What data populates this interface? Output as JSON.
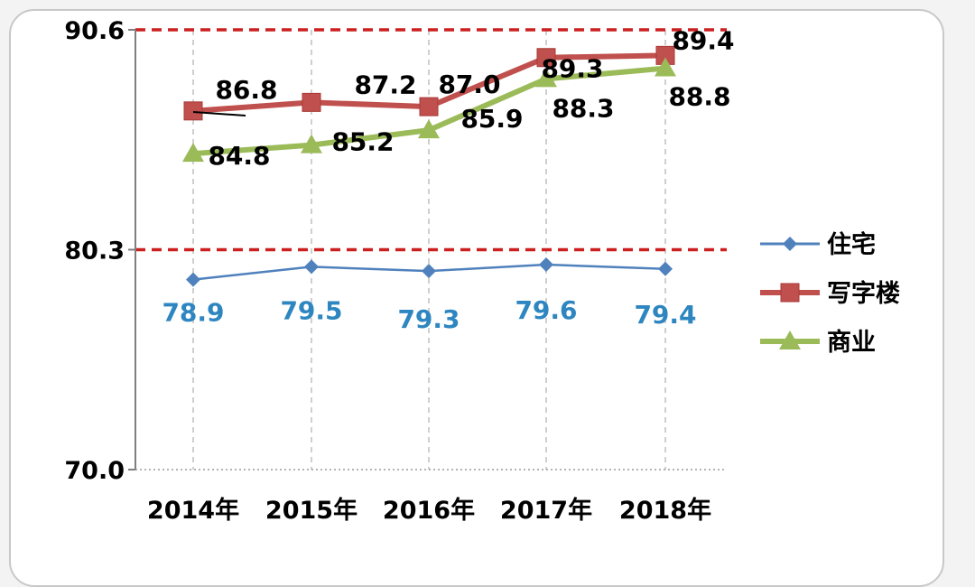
{
  "chart_data": {
    "type": "line",
    "categories": [
      "2014年",
      "2015年",
      "2016年",
      "2017年",
      "2018年"
    ],
    "ylim": [
      70.0,
      90.6
    ],
    "yticks": [
      "90.6",
      "80.3",
      "70.0"
    ],
    "reference_lines": [
      90.6,
      80.3
    ],
    "grid": "vertical dashed",
    "legend_position": "right",
    "series": [
      {
        "name": "住宅",
        "values": [
          78.9,
          79.5,
          79.3,
          79.6,
          79.4
        ],
        "labels": [
          "78.9",
          "79.5",
          "79.3",
          "79.6",
          "79.4"
        ],
        "color": "#4f81bd",
        "label_color": "#2e86c1",
        "marker": "diamond"
      },
      {
        "name": "写字楼",
        "values": [
          86.8,
          87.2,
          87.0,
          89.3,
          89.4
        ],
        "labels": [
          "86.8",
          "87.2",
          "87.0",
          "89.3",
          "89.4"
        ],
        "color": "#c0504d",
        "label_color": "#000000",
        "marker": "square"
      },
      {
        "name": "商业",
        "values": [
          84.8,
          85.2,
          85.9,
          88.3,
          88.8
        ],
        "labels": [
          "84.8",
          "85.2",
          "85.9",
          "88.3",
          "88.8"
        ],
        "color": "#9bbb59",
        "label_color": "#000000",
        "marker": "triangle"
      }
    ]
  },
  "colors": {
    "reference_line": "#cc1f1f",
    "grid": "#bfbfbf",
    "axis": "#7f7f7f"
  }
}
